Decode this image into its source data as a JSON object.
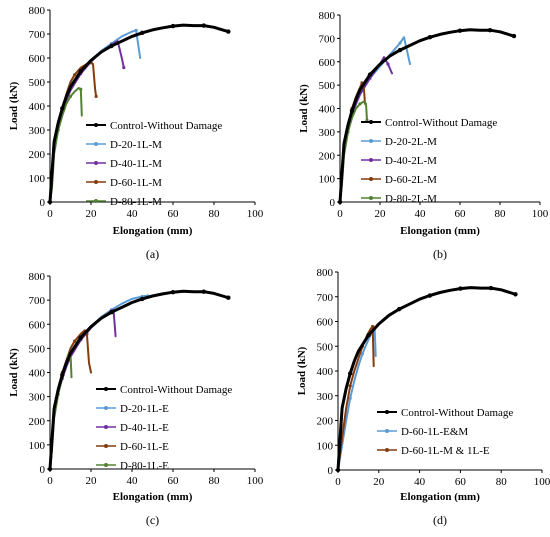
{
  "chart_data": [
    {
      "type": "line",
      "panel_label": "(a)",
      "xlabel": "Elongation (mm)",
      "ylabel": "Load (kN)",
      "xlim": [
        0,
        100
      ],
      "ylim": [
        0,
        800
      ],
      "xticks": [
        "0",
        "20",
        "40",
        "60",
        "80",
        "100"
      ],
      "yticks": [
        "0",
        "100",
        "200",
        "300",
        "400",
        "500",
        "600",
        "700",
        "800"
      ],
      "grid": false,
      "legend": "right",
      "series": [
        {
          "name": "Control-Without Damage",
          "color": "#000000",
          "width": 3,
          "x": [
            0,
            2,
            4,
            6,
            8,
            10,
            15,
            20,
            25,
            30,
            35,
            40,
            45,
            50,
            55,
            60,
            65,
            70,
            75,
            80,
            85,
            87
          ],
          "y": [
            0,
            250,
            330,
            390,
            440,
            480,
            545,
            590,
            625,
            650,
            670,
            690,
            705,
            717,
            726,
            733,
            737,
            735,
            735,
            728,
            715,
            710
          ]
        },
        {
          "name": "D-20-1L-M",
          "color": "#5b9bd5",
          "width": 2,
          "x": [
            0,
            2,
            4,
            6,
            8,
            10,
            15,
            20,
            25,
            30,
            35,
            40,
            42,
            44
          ],
          "y": [
            0,
            240,
            320,
            380,
            430,
            470,
            540,
            590,
            630,
            660,
            690,
            710,
            715,
            600
          ]
        },
        {
          "name": "D-40-1L-M",
          "color": "#7030a0",
          "width": 2,
          "x": [
            0,
            2,
            4,
            6,
            8,
            10,
            15,
            20,
            25,
            30,
            33,
            35,
            36
          ],
          "y": [
            0,
            235,
            315,
            375,
            425,
            465,
            535,
            585,
            625,
            655,
            670,
            600,
            560
          ]
        },
        {
          "name": "D-60-1L-M",
          "color": "#843c0c",
          "width": 2,
          "x": [
            0,
            2,
            4,
            6,
            8,
            10,
            12,
            15,
            18,
            20,
            21,
            22,
            22.5
          ],
          "y": [
            0,
            240,
            320,
            390,
            450,
            500,
            530,
            560,
            575,
            580,
            575,
            470,
            440
          ]
        },
        {
          "name": "D-80-1L-M",
          "color": "#548235",
          "width": 2,
          "x": [
            0,
            1,
            2,
            4,
            6,
            8,
            10,
            12,
            14,
            15,
            15.5
          ],
          "y": [
            0,
            60,
            200,
            300,
            360,
            410,
            440,
            460,
            475,
            470,
            360
          ]
        }
      ]
    },
    {
      "type": "line",
      "panel_label": "(b)",
      "xlabel": "Elongation (mm)",
      "ylabel": "Load (kN)",
      "xlim": [
        0,
        100
      ],
      "ylim": [
        0,
        800
      ],
      "xticks": [
        "0",
        "20",
        "40",
        "60",
        "80",
        "100"
      ],
      "yticks": [
        "0",
        "100",
        "200",
        "300",
        "400",
        "500",
        "600",
        "700",
        "800"
      ],
      "grid": false,
      "legend": "right",
      "series": [
        {
          "name": "Control-Without Damage",
          "color": "#000000",
          "width": 3,
          "x": [
            0,
            2,
            4,
            6,
            8,
            10,
            15,
            20,
            25,
            30,
            35,
            40,
            45,
            50,
            55,
            60,
            65,
            70,
            75,
            80,
            85,
            87
          ],
          "y": [
            0,
            250,
            330,
            390,
            440,
            480,
            545,
            590,
            625,
            650,
            670,
            690,
            705,
            717,
            726,
            733,
            737,
            735,
            735,
            728,
            715,
            710
          ]
        },
        {
          "name": "D-20-2L-M",
          "color": "#5b9bd5",
          "width": 2,
          "x": [
            0,
            2,
            4,
            6,
            8,
            10,
            15,
            20,
            25,
            30,
            32,
            35
          ],
          "y": [
            0,
            230,
            310,
            370,
            420,
            460,
            530,
            580,
            630,
            680,
            705,
            590
          ]
        },
        {
          "name": "D-40-2L-M",
          "color": "#7030a0",
          "width": 2,
          "x": [
            0,
            2,
            4,
            6,
            8,
            10,
            15,
            20,
            22,
            24,
            26
          ],
          "y": [
            0,
            230,
            310,
            370,
            420,
            460,
            530,
            590,
            620,
            590,
            550
          ]
        },
        {
          "name": "D-60-2L-M",
          "color": "#843c0c",
          "width": 2,
          "x": [
            0,
            2,
            4,
            6,
            8,
            10,
            11,
            12,
            12.5
          ],
          "y": [
            0,
            240,
            330,
            400,
            450,
            490,
            510,
            480,
            420
          ]
        },
        {
          "name": "D-80-2L-M",
          "color": "#548235",
          "width": 2,
          "x": [
            0,
            1,
            2,
            4,
            6,
            8,
            10,
            12,
            13,
            13.5
          ],
          "y": [
            0,
            80,
            200,
            300,
            360,
            400,
            420,
            430,
            420,
            350
          ]
        }
      ]
    },
    {
      "type": "line",
      "panel_label": "(c)",
      "xlabel": "Elongation (mm)",
      "ylabel": "Load (kN)",
      "xlim": [
        0,
        100
      ],
      "ylim": [
        0,
        800
      ],
      "xticks": [
        "0",
        "20",
        "40",
        "60",
        "80",
        "100"
      ],
      "yticks": [
        "0",
        "100",
        "200",
        "300",
        "400",
        "500",
        "600",
        "700",
        "800"
      ],
      "grid": false,
      "legend": "right",
      "series": [
        {
          "name": "Control-Without Damage",
          "color": "#000000",
          "width": 3,
          "x": [
            0,
            2,
            4,
            6,
            8,
            10,
            15,
            20,
            25,
            30,
            35,
            40,
            45,
            50,
            55,
            60,
            65,
            70,
            75,
            80,
            85,
            87
          ],
          "y": [
            0,
            250,
            330,
            390,
            440,
            480,
            545,
            590,
            625,
            650,
            670,
            690,
            705,
            717,
            726,
            733,
            737,
            735,
            735,
            728,
            715,
            710
          ]
        },
        {
          "name": "D-20-1L-E",
          "color": "#5b9bd5",
          "width": 2,
          "x": [
            0,
            2,
            4,
            6,
            8,
            10,
            15,
            20,
            25,
            30,
            35,
            40,
            45,
            48
          ],
          "y": [
            0,
            240,
            320,
            380,
            430,
            470,
            540,
            590,
            630,
            660,
            685,
            705,
            715,
            720
          ]
        },
        {
          "name": "D-40-1L-E",
          "color": "#7030a0",
          "width": 2,
          "x": [
            0,
            2,
            4,
            6,
            8,
            10,
            15,
            20,
            25,
            30,
            31,
            32
          ],
          "y": [
            0,
            235,
            315,
            375,
            425,
            465,
            535,
            585,
            625,
            655,
            660,
            550
          ]
        },
        {
          "name": "D-60-1L-E",
          "color": "#843c0c",
          "width": 2,
          "x": [
            0,
            2,
            4,
            6,
            8,
            10,
            12,
            15,
            17,
            18,
            19,
            20
          ],
          "y": [
            0,
            240,
            330,
            400,
            450,
            500,
            530,
            560,
            575,
            560,
            440,
            400
          ]
        },
        {
          "name": "D-80-1L-E",
          "color": "#548235",
          "width": 2,
          "x": [
            0,
            1,
            2,
            4,
            6,
            8,
            9,
            10,
            10.5
          ],
          "y": [
            0,
            80,
            210,
            310,
            380,
            440,
            470,
            480,
            380
          ]
        }
      ]
    },
    {
      "type": "line",
      "panel_label": "(d)",
      "xlabel": "Elongation (mm)",
      "ylabel": "Load (kN)",
      "xlim": [
        0,
        100
      ],
      "ylim": [
        0,
        800
      ],
      "xticks": [
        "0",
        "20",
        "40",
        "60",
        "80",
        "100"
      ],
      "yticks": [
        "0",
        "100",
        "200",
        "300",
        "400",
        "500",
        "600",
        "700",
        "800"
      ],
      "grid": false,
      "legend": "right",
      "series": [
        {
          "name": "Control-Without Damage",
          "color": "#000000",
          "width": 3,
          "x": [
            0,
            2,
            4,
            6,
            8,
            10,
            15,
            20,
            25,
            30,
            35,
            40,
            45,
            50,
            55,
            60,
            65,
            70,
            75,
            80,
            85,
            87
          ],
          "y": [
            0,
            250,
            330,
            390,
            440,
            480,
            545,
            590,
            625,
            650,
            670,
            690,
            705,
            717,
            726,
            733,
            737,
            735,
            735,
            728,
            715,
            710
          ]
        },
        {
          "name": "D-60-1L-E&M",
          "color": "#5b9bd5",
          "width": 2,
          "x": [
            0,
            2,
            4,
            6,
            8,
            10,
            12,
            14,
            16,
            17,
            18,
            18.5
          ],
          "y": [
            0,
            100,
            200,
            290,
            360,
            420,
            470,
            510,
            545,
            560,
            570,
            460
          ]
        },
        {
          "name": "D-60-1L-M & 1L-E",
          "color": "#843c0c",
          "width": 2,
          "x": [
            0,
            2,
            4,
            6,
            8,
            10,
            12,
            14,
            16,
            17,
            17.5
          ],
          "y": [
            0,
            130,
            250,
            340,
            400,
            450,
            500,
            540,
            570,
            580,
            420
          ]
        }
      ]
    }
  ]
}
